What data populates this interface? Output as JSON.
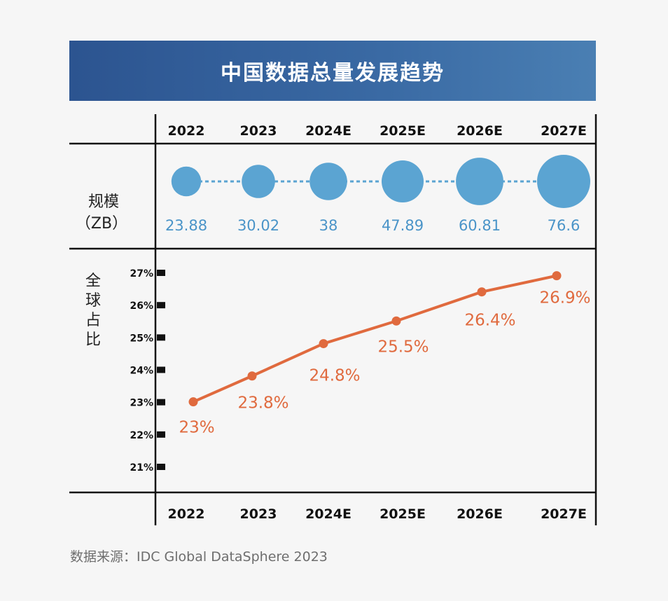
{
  "title": "中国数据总量发展趋势",
  "source": "数据来源：IDC Global DataSphere 2023",
  "colors": {
    "banner": "#33609a",
    "bubble": "#5ba4d2",
    "bubble_text": "#4a94c8",
    "line": "#e06a3e",
    "grid": "#111111"
  },
  "chart_data": [
    {
      "type": "bubble",
      "label": "规模",
      "unit_label": "（ZB）",
      "categories": [
        "2022",
        "2023",
        "2024E",
        "2025E",
        "2026E",
        "2027E"
      ],
      "values": [
        23.88,
        30.02,
        38,
        47.89,
        60.81,
        76.6
      ],
      "value_labels": [
        "23.88",
        "30.02",
        "38",
        "47.89",
        "60.81",
        "76.6"
      ]
    },
    {
      "type": "line",
      "label": "全球占比",
      "categories": [
        "2022",
        "2023",
        "2024E",
        "2025E",
        "2026E",
        "2027E"
      ],
      "values": [
        23,
        23.8,
        24.8,
        25.5,
        26.4,
        26.9
      ],
      "value_labels": [
        "23%",
        "23.8%",
        "24.8%",
        "25.5%",
        "26.4%",
        "26.9%"
      ],
      "y_ticks": [
        "27%",
        "26%",
        "25%",
        "24%",
        "23%",
        "22%",
        "21%"
      ],
      "ylim": [
        21,
        27
      ]
    }
  ]
}
